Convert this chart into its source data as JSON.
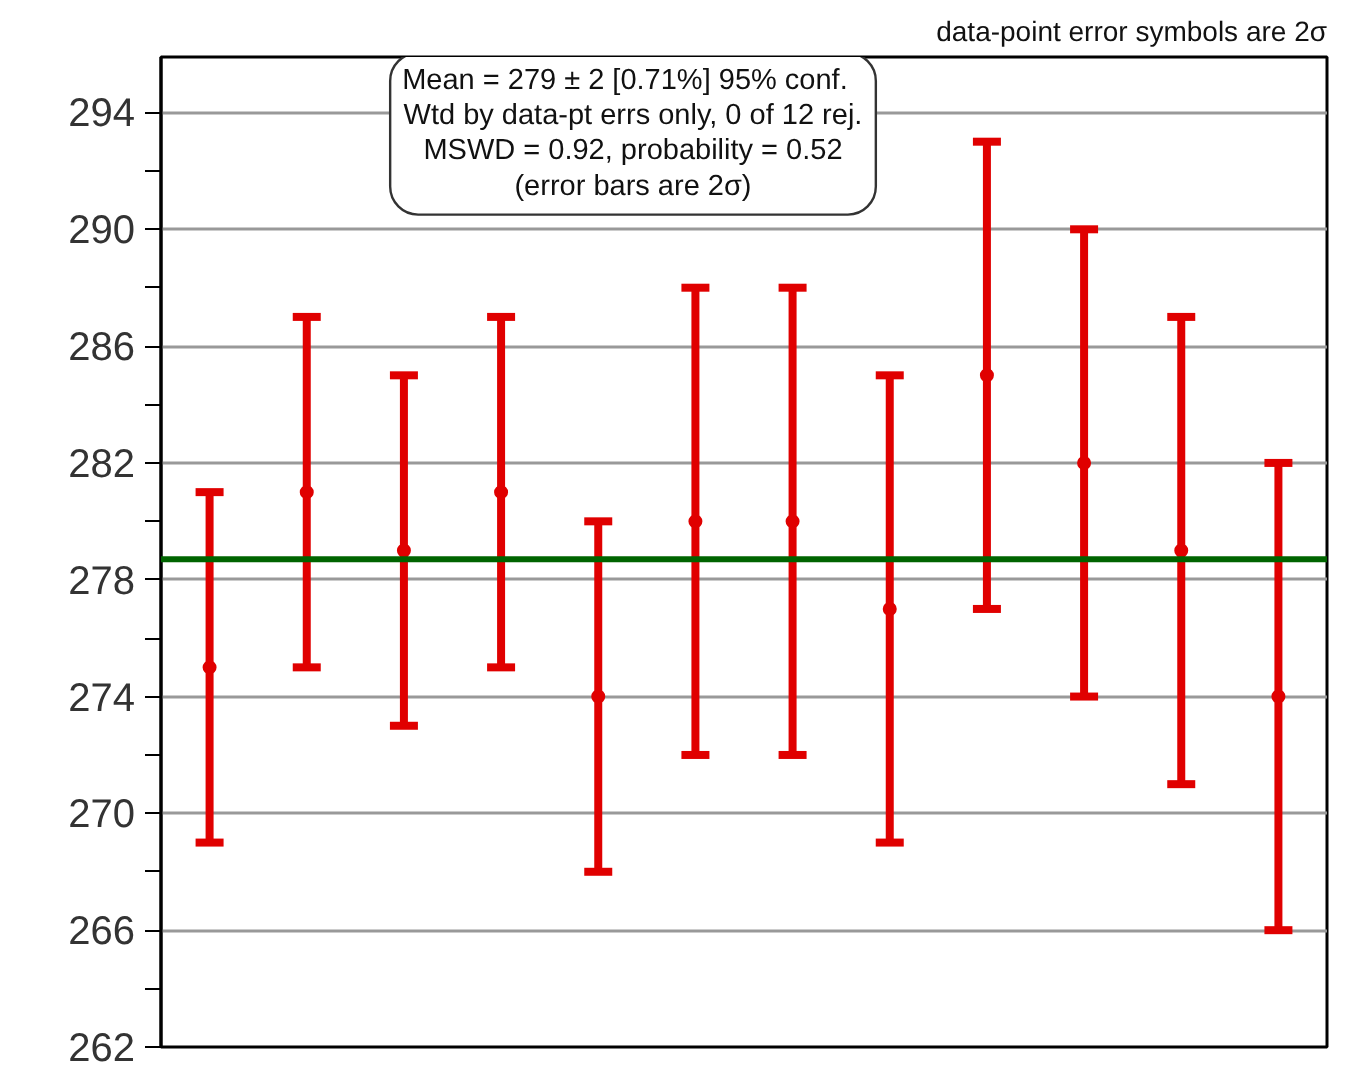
{
  "chart_data": {
    "type": "scatter",
    "categories": [
      null,
      null,
      null,
      null,
      null,
      null,
      null,
      null,
      null,
      null,
      null,
      null
    ],
    "series": [
      {
        "color": "#e00000",
        "values": [
          275,
          281,
          279,
          281,
          274,
          280,
          280,
          277,
          285,
          282,
          279,
          274
        ],
        "errors": [
          6,
          6,
          6,
          6,
          6,
          8,
          8,
          8,
          8,
          8,
          8,
          8
        ]
      }
    ],
    "marker": "circle",
    "ylim": [
      262,
      295.9
    ],
    "yticks": [
      262,
      {
        "value": 264,
        "label": null
      },
      266,
      {
        "value": 268,
        "label": null
      },
      270,
      {
        "value": 272,
        "label": null
      },
      274,
      {
        "value": 276,
        "label": null
      },
      278,
      {
        "value": 280,
        "label": null
      },
      282,
      {
        "value": 284,
        "label": null
      },
      286,
      {
        "value": 288,
        "label": null
      },
      290,
      {
        "value": 292,
        "label": null
      },
      294
    ],
    "grid": "y",
    "tick_labels": "y",
    "ref_lines": [
      {
        "axis": "y",
        "value": 278.7,
        "color": "#006400"
      }
    ],
    "annotations": [
      "Mean = 279 ± 2  [0.71%]  95% conf.\nWtd by data-pt errs only, 0 of 12 rej.\nMSWD = 0.92, probability = 0.52\n(error bars are 2σ)",
      "data-point error symbols are 2σ"
    ]
  }
}
